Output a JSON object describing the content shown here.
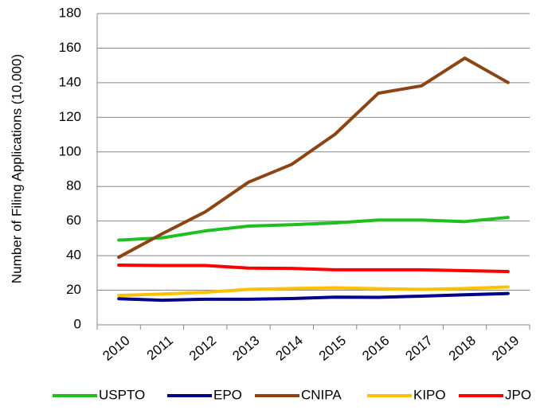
{
  "chart_data": {
    "type": "line",
    "y_label": "Number of Filing Applications  (10,000)",
    "categories": [
      "2010",
      "2011",
      "2012",
      "2013",
      "2014",
      "2015",
      "2016",
      "2017",
      "2018",
      "2019"
    ],
    "series": [
      {
        "name": "USPTO",
        "color": "#1fbf1f",
        "values": [
          49,
          50.3,
          54.3,
          57.1,
          57.9,
          58.9,
          60.6,
          60.6,
          59.7,
          62.1
        ]
      },
      {
        "name": "EPO",
        "color": "#00008b",
        "values": [
          15.1,
          14.2,
          14.8,
          14.8,
          15.2,
          16.0,
          15.9,
          16.6,
          17.4,
          18.1
        ]
      },
      {
        "name": "CNIPA",
        "color": "#8b4513",
        "values": [
          39.1,
          52.6,
          65.3,
          82.5,
          92.8,
          110.2,
          133.9,
          138.2,
          154.2,
          140.1
        ]
      },
      {
        "name": "KIPO",
        "color": "#ffc000",
        "values": [
          17.0,
          17.8,
          18.8,
          20.5,
          21.0,
          21.4,
          20.9,
          20.5,
          21.0,
          21.9
        ]
      },
      {
        "name": "JPO",
        "color": "#ff0000",
        "values": [
          34.5,
          34.3,
          34.3,
          32.8,
          32.6,
          31.8,
          31.8,
          31.8,
          31.3,
          30.8
        ]
      }
    ],
    "ylim": [
      0,
      180
    ],
    "yticks": [
      0,
      20,
      40,
      60,
      80,
      100,
      120,
      140,
      160,
      180
    ],
    "grid": true
  }
}
